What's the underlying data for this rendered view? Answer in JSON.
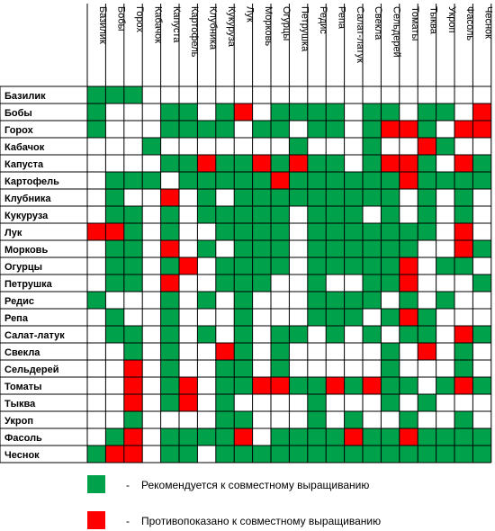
{
  "plants": [
    "Базилик",
    "Бобы",
    "Горох",
    "Кабачок",
    "Капуста",
    "Картофель",
    "Клубника",
    "Кукуруза",
    "Лук",
    "Морковь",
    "Огурцы",
    "Петрушка",
    "Редис",
    "Репа",
    "Салат-латук",
    "Свекла",
    "Сельдерей",
    "Томаты",
    "Тыква",
    "Укроп",
    "Фасоль",
    "Чеснок"
  ],
  "matrix_legend": {
    "G": "green",
    "R": "red",
    ".": "white"
  },
  "matrix": [
    "GGG...................",
    "G...GG.GR.GGGG.GG.GG.R",
    "G...GGGG.GG.GG.GRRG.RR",
    "...G.......G...G..RG..",
    "....GGRGGRGRGG.GRRG.RG",
    ".GGG.GGGGGRGGGGGGRGGGG",
    ".G..R.G.GGGGGGGGG.G.G.",
    ".GG.G.GGGGG.GGG.G.G.G.",
    "RRG.G..GGGG.GGGGGGG.R.",
    ".GG.R.G.GGG.GGGGGG..RG",
    ".GG.GR.GGGG.GGGGGR.GG.",
    ".GG.R..GGG..G..GGR...G",
    "G...G.G.G...GGGG.G.G..",
    ".G..G...G...GGG.GRG...",
    ".GG.G.G.G.GG.G.G.GG.RG",
    "..G.G..RG.G.....G.R.G.",
    "..R.G..GG.G.....G...G.",
    "..R.GR.GGRRGGRGRGG.GRG",
    "..R.GR.G....G...G.G...",
    "..G....GG...G.G..G..G.",
    ".GR.GGGGR.GGGGRGGRGGGG",
    "GRR.GG.GGGGGGGGGGGGGGG"
  ],
  "legend": {
    "recommended": {
      "color": "#00a14b",
      "dash": "-",
      "text": "Рекомендуется к совместному выращиванию"
    },
    "contraindicated": {
      "color": "#ff0000",
      "dash": "-",
      "text": "Противопоказано к совместному выращиванию"
    }
  }
}
